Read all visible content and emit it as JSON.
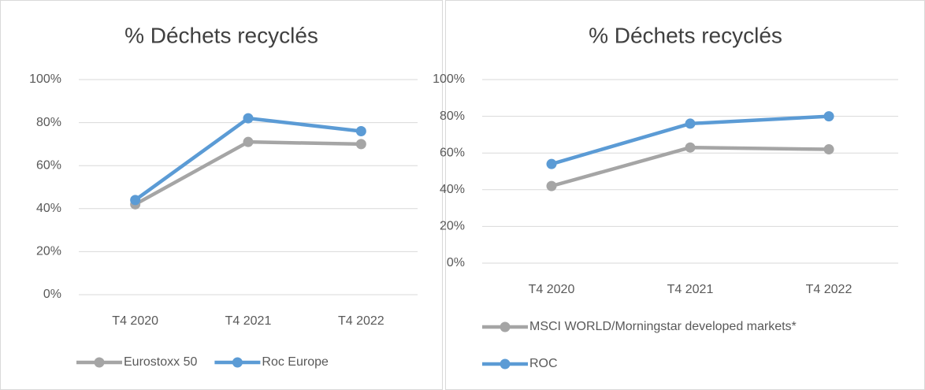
{
  "chart_data": [
    {
      "type": "line",
      "title": "% Déchets recyclés",
      "categories": [
        "T4 2020",
        "T4 2021",
        "T4 2022"
      ],
      "series": [
        {
          "name": "Eurostoxx 50",
          "color": "#a5a5a5",
          "values": [
            42,
            71,
            70
          ]
        },
        {
          "name": "Roc Europe",
          "color": "#5b9bd5",
          "values": [
            44,
            82,
            76
          ]
        }
      ],
      "ylim": [
        0,
        100
      ],
      "yticks": [
        {
          "value": 0,
          "label": "0%"
        },
        {
          "value": 20,
          "label": "20%"
        },
        {
          "value": 40,
          "label": "40%"
        },
        {
          "value": 60,
          "label": "60%"
        },
        {
          "value": 80,
          "label": "80%"
        },
        {
          "value": 100,
          "label": "100%"
        }
      ],
      "grid": true,
      "legend": "bottom"
    },
    {
      "type": "line",
      "title": "% Déchets recyclés",
      "categories": [
        "T4 2020",
        "T4 2021",
        "T4 2022"
      ],
      "series": [
        {
          "name": "MSCI WORLD/Morningstar developed markets*",
          "color": "#a5a5a5",
          "values": [
            42,
            63,
            62
          ]
        },
        {
          "name": "ROC",
          "color": "#5b9bd5",
          "values": [
            54,
            76,
            80
          ]
        }
      ],
      "ylim": [
        0,
        100
      ],
      "yticks": [
        {
          "value": 0,
          "label": "0%"
        },
        {
          "value": 20,
          "label": "20%"
        },
        {
          "value": 40,
          "label": "40%"
        },
        {
          "value": 60,
          "label": "60%"
        },
        {
          "value": 80,
          "label": "80%"
        },
        {
          "value": 100,
          "label": "100%"
        }
      ],
      "grid": true,
      "legend": "bottom"
    }
  ]
}
